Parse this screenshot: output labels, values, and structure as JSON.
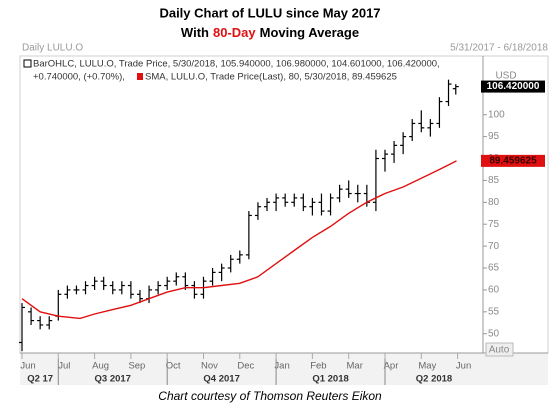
{
  "chart_data": {
    "type": "ohlc",
    "title": "Daily Chart of LULU since May 2017",
    "subtitle_parts": [
      "With",
      "80-Day",
      "Moving Average"
    ],
    "panel_label": "Daily LULU.O",
    "date_range": "5/31/2017 - 6/18/2018",
    "caption": "Chart courtesy of Thomson Reuters Eikon",
    "y_unit": "USD",
    "y_scale_mode": "Auto",
    "ohlc": {
      "name": "BarOHLC, LULU.O, Trade Price, 5/30/2018, 105.940000, 106.980000, 104.601000, 106.420000,",
      "change": "+0.740000, (+0.70%),",
      "change_color": "#1a9a1a",
      "color": "#000000",
      "x": [
        0,
        0.25,
        0.5,
        0.75,
        1,
        1.25,
        1.5,
        1.75,
        2,
        2.25,
        2.5,
        2.75,
        3,
        3.25,
        3.5,
        3.75,
        4,
        4.25,
        4.5,
        4.75,
        5,
        5.25,
        5.5,
        5.75,
        6,
        6.25,
        6.5,
        6.75,
        7,
        7.25,
        7.5,
        7.75,
        8,
        8.25,
        8.5,
        8.75,
        9,
        9.25,
        9.5,
        9.75,
        10,
        10.25,
        10.5,
        10.75,
        11,
        11.25,
        11.5,
        11.75,
        11.95
      ],
      "open": [
        48,
        55,
        53,
        52,
        54,
        59,
        60,
        60,
        61,
        62,
        61,
        60,
        61,
        59,
        58,
        60,
        61,
        62,
        63,
        61,
        59,
        62,
        64,
        65,
        67,
        68,
        77,
        79,
        80,
        81,
        80,
        81,
        79,
        80,
        78,
        81,
        83,
        82,
        82,
        80,
        90,
        91,
        93,
        95,
        98,
        97,
        98,
        103,
        105.94
      ],
      "high": [
        57,
        56,
        54,
        54,
        60,
        61,
        61,
        62,
        63,
        63,
        62,
        62,
        62,
        60,
        61,
        62,
        63,
        64,
        64,
        62,
        63,
        65,
        66,
        68,
        69,
        78,
        80,
        81,
        82,
        82,
        82,
        82,
        81,
        82,
        82,
        84,
        85,
        84,
        84,
        92,
        92,
        94,
        96,
        99,
        101,
        99,
        104,
        108,
        106.98
      ],
      "low": [
        46,
        52,
        51,
        51,
        53,
        58,
        59,
        59,
        60,
        60,
        59,
        59,
        58,
        57,
        57,
        59,
        60,
        61,
        60,
        58,
        58,
        61,
        62,
        64,
        66,
        67,
        76,
        78,
        78,
        79,
        79,
        78,
        77,
        77,
        77,
        80,
        81,
        80,
        79,
        78,
        87,
        89,
        91,
        94,
        96,
        95,
        97,
        102,
        104.601
      ],
      "close": [
        56,
        53,
        52,
        53,
        59,
        60,
        60,
        61,
        62,
        61,
        60,
        61,
        59,
        58,
        60,
        61,
        62,
        63,
        61,
        59,
        62,
        64,
        65,
        67,
        68,
        77,
        79,
        80,
        81,
        80,
        81,
        79,
        80,
        78,
        81,
        83,
        82,
        82,
        80,
        90,
        91,
        93,
        95,
        98,
        97,
        98,
        103,
        107,
        106.42
      ]
    },
    "series": [
      {
        "name": "SMA, LULU.O, Trade Price(Last), 80, 5/30/2018, 89.459625",
        "color": "#e01010",
        "x": [
          0,
          0.5,
          1,
          1.6,
          2,
          2.5,
          3,
          3.5,
          4,
          4.5,
          5,
          5.5,
          6,
          6.5,
          7,
          7.5,
          8,
          8.5,
          9,
          9.5,
          10,
          10.5,
          11,
          11.5,
          11.97
        ],
        "values": [
          58,
          55,
          54,
          53.5,
          54.5,
          55.5,
          56.5,
          58,
          59.5,
          60.5,
          60.5,
          61,
          61.5,
          63,
          66,
          69,
          72,
          74.5,
          77.5,
          80,
          82,
          83.5,
          85.5,
          87.5,
          89.459625
        ]
      }
    ],
    "price_labels": [
      {
        "value": 106.42,
        "label": "106.420000",
        "color": "#000000",
        "text_color": "#ffffff"
      },
      {
        "value": 89.459625,
        "label": "89.459625",
        "color": "#e01010",
        "text_color": "#3a0000"
      }
    ],
    "ylim": [
      45.6,
      113.4
    ],
    "yticks": [
      50,
      55,
      60,
      65,
      70,
      75,
      80,
      85,
      90,
      95,
      100
    ],
    "xlim": [
      0,
      12.7
    ],
    "xticks": [
      {
        "value": 0,
        "label": "Jun"
      },
      {
        "value": 1,
        "label": "Jul"
      },
      {
        "value": 2,
        "label": "Aug"
      },
      {
        "value": 3,
        "label": "Sep"
      },
      {
        "value": 4,
        "label": "Oct"
      },
      {
        "value": 5,
        "label": "Nov"
      },
      {
        "value": 6,
        "label": "Dec"
      },
      {
        "value": 7,
        "label": "Jan"
      },
      {
        "value": 8,
        "label": "Feb"
      },
      {
        "value": 9,
        "label": "Mar"
      },
      {
        "value": 10,
        "label": "Apr"
      },
      {
        "value": 11,
        "label": "May"
      },
      {
        "value": 12,
        "label": "Jun"
      }
    ],
    "quarter_ticks": [
      {
        "value": -2,
        "label": "Q2 17"
      },
      {
        "value": 1,
        "label": "Q3 2017"
      },
      {
        "value": 4,
        "label": "Q4 2017"
      },
      {
        "value": 7,
        "label": "Q1 2018"
      },
      {
        "value": 10,
        "label": "Q2 2018"
      }
    ]
  }
}
